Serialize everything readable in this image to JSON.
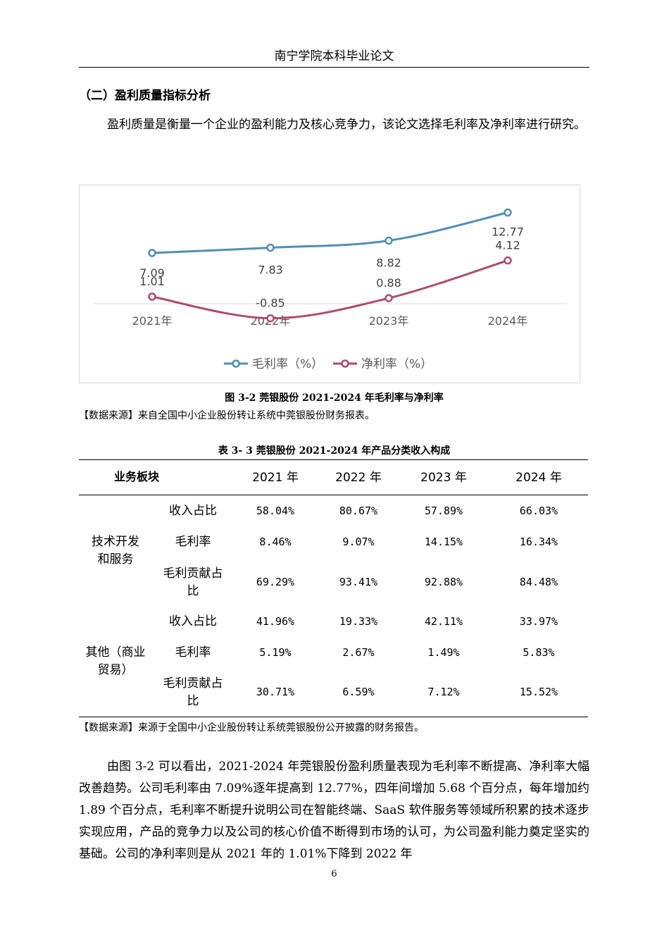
{
  "header": {
    "title": "南宁学院本科毕业论文"
  },
  "section": {
    "title": "（二）盈利质量指标分析"
  },
  "intro": "盈利质量是衡量一个企业的盈利能力及核心竞争力，该论文选择毛利率及净利率进行研究。",
  "figure": {
    "caption": "图 3-2 莞银股份 2021-2024 年毛利率与净利率",
    "source": "【数据来源】来自全国中小企业股份转让系统中莞银股份财务报表。"
  },
  "chart_data": {
    "type": "line",
    "categories": [
      "2021年",
      "2022年",
      "2023年",
      "2024年"
    ],
    "series": [
      {
        "name": "毛利率（%）",
        "values": [
          7.09,
          7.83,
          8.82,
          12.77
        ],
        "labels": [
          "7.09",
          "7.83",
          "8.82",
          "12.77"
        ],
        "color": "#4f8fb5"
      },
      {
        "name": "净利率（%）",
        "values": [
          1.01,
          -0.85,
          0.88,
          4.12
        ],
        "labels": [
          "1.01",
          "-0.85",
          "0.88",
          "4.12"
        ],
        "color": "#b04a6e"
      }
    ],
    "legend_position": "bottom",
    "grid": false
  },
  "table": {
    "caption": "表 3- 3 莞银股份 2021-2024 年产品分类收入构成",
    "header": [
      "业务板块",
      "2021 年",
      "2022 年",
      "2023 年",
      "2024 年"
    ],
    "groups": [
      {
        "name": "技术开发和服务",
        "name_lines": [
          "技术开发",
          "和服务"
        ],
        "rows": [
          {
            "metric_lines": [
              "收入占比"
            ],
            "values": [
              "58.04%",
              "80.67%",
              "57.89%",
              "66.03%"
            ]
          },
          {
            "metric_lines": [
              "毛利率"
            ],
            "values": [
              "8.46%",
              "9.07%",
              "14.15%",
              "16.34%"
            ]
          },
          {
            "metric_lines": [
              "毛利贡献占",
              "比"
            ],
            "values": [
              "69.29%",
              "93.41%",
              "92.88%",
              "84.48%"
            ]
          }
        ]
      },
      {
        "name": "其他（商业贸易）",
        "name_lines": [
          "其他（商业",
          "贸易）"
        ],
        "rows": [
          {
            "metric_lines": [
              "收入占比"
            ],
            "values": [
              "41.96%",
              "19.33%",
              "42.11%",
              "33.97%"
            ]
          },
          {
            "metric_lines": [
              "毛利率"
            ],
            "values": [
              "5.19%",
              "2.67%",
              "1.49%",
              "5.83%"
            ]
          },
          {
            "metric_lines": [
              "毛利贡献占",
              "比"
            ],
            "values": [
              "30.71%",
              "6.59%",
              "7.12%",
              "15.52%"
            ]
          }
        ]
      }
    ],
    "source": "【数据来源】来源于全国中小企业股份转让系统莞银股份公开披露的财务报告。"
  },
  "body_paragraph": "由图 3-2 可以看出，2021-2024 年莞银股份盈利质量表现为毛利率不断提高、净利率大幅改善趋势。公司毛利率由 7.09%逐年提高到 12.77%，四年间增加 5.68 个百分点，每年增加约 1.89 个百分点，毛利率不断提升说明公司在智能终端、SaaS 软件服务等领域所积累的技术逐步实现应用，产品的竞争力以及公司的核心价值不断得到市场的认可，为公司盈利能力奠定坚实的基础。公司的净利率则是从 2021 年的 1.01%下降到 2022 年",
  "page_number": "6"
}
